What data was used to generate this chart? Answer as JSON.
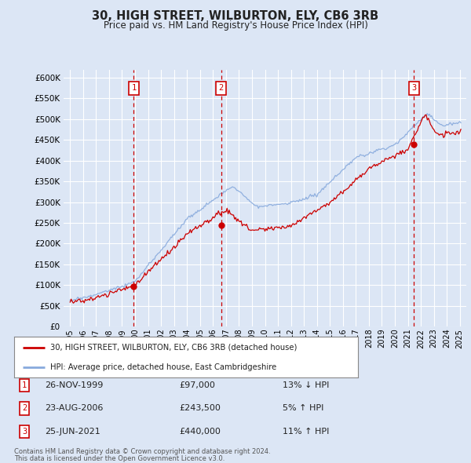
{
  "title": "30, HIGH STREET, WILBURTON, ELY, CB6 3RB",
  "subtitle": "Price paid vs. HM Land Registry's House Price Index (HPI)",
  "ylim": [
    0,
    620000
  ],
  "yticks": [
    0,
    50000,
    100000,
    150000,
    200000,
    250000,
    300000,
    350000,
    400000,
    450000,
    500000,
    550000,
    600000
  ],
  "ytick_labels": [
    "£0",
    "£50K",
    "£100K",
    "£150K",
    "£200K",
    "£250K",
    "£300K",
    "£350K",
    "£400K",
    "£450K",
    "£500K",
    "£550K",
    "£600K"
  ],
  "figure_bg": "#dce6f5",
  "plot_bg": "#dce6f5",
  "grid_color": "#ffffff",
  "red_color": "#cc0000",
  "blue_color": "#88aadd",
  "sale1_year": 1999.9,
  "sale1_price": 97000,
  "sale1_label": "1",
  "sale1_date": "26-NOV-1999",
  "sale1_amount": "£97,000",
  "sale1_hpi": "13% ↓ HPI",
  "sale2_year": 2006.62,
  "sale2_price": 243500,
  "sale2_label": "2",
  "sale2_date": "23-AUG-2006",
  "sale2_amount": "£243,500",
  "sale2_hpi": "5% ↑ HPI",
  "sale3_year": 2021.48,
  "sale3_price": 440000,
  "sale3_label": "3",
  "sale3_date": "25-JUN-2021",
  "sale3_amount": "£440,000",
  "sale3_hpi": "11% ↑ HPI",
  "legend_label_red": "30, HIGH STREET, WILBURTON, ELY, CB6 3RB (detached house)",
  "legend_label_blue": "HPI: Average price, detached house, East Cambridgeshire",
  "footer1": "Contains HM Land Registry data © Crown copyright and database right 2024.",
  "footer2": "This data is licensed under the Open Government Licence v3.0.",
  "xlim_start": 1994.5,
  "xlim_end": 2025.5,
  "xtick_years": [
    1995,
    1996,
    1997,
    1998,
    1999,
    2000,
    2001,
    2002,
    2003,
    2004,
    2005,
    2006,
    2007,
    2008,
    2009,
    2010,
    2011,
    2012,
    2013,
    2014,
    2015,
    2016,
    2017,
    2018,
    2019,
    2020,
    2021,
    2022,
    2023,
    2024,
    2025
  ]
}
